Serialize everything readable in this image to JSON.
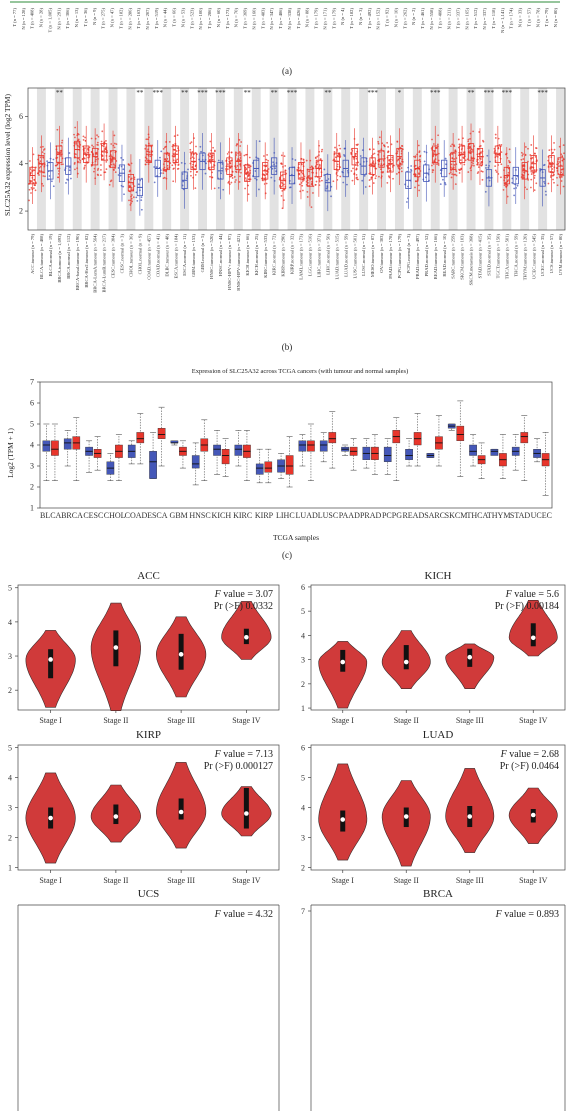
{
  "panels": {
    "a": {
      "label": "(a)",
      "tick_labels": [
        "T (n = 77)",
        "N (n = 128)",
        "T (n = 408)",
        "N (n = 28)",
        "T (n = 1,085)",
        "N (n = 291)",
        "T (n = 306)",
        "N (n = 13)",
        "T (n = 36)",
        "N (n = 9)",
        "T (n = 275)",
        "N (n = 47)",
        "T (n = 182)",
        "N (n = 286)",
        "T (n = 163)",
        "N (n = 207)",
        "T (n = 519)",
        "N (n = 44)",
        "T (n = 66)",
        "N (n = 53)",
        "T (n = 523)",
        "N (n = 100)",
        "T (n = 286)",
        "N (n = 60)",
        "T (n = 173)",
        "N (n = 70)",
        "T (n = 369)",
        "N (n = 160)",
        "T (n = 483)",
        "N (n = 347)",
        "T (n = 486)",
        "N (n = 338)",
        "T (n = 426)",
        "N (n = 88)",
        "T (n = 179)",
        "N (n = 171)",
        "T (n = 179)",
        "N (n = 4)",
        "T (n = 182)",
        "N (n = 3)",
        "T (n = 492)",
        "N (n = 152)",
        "T (n = 92)",
        "N (n = 10)",
        "T (n = 262)",
        "N (n = 2)",
        "T (n = 461)",
        "N (n = 558)",
        "T (n = 408)",
        "N (n = 211)",
        "T (n = 337)",
        "N (n = 165)",
        "T (n = 512)",
        "N (n = 337)",
        "T (n = 118)",
        "N (n = 1,141)",
        "T (n = 174)",
        "N (n = 33)",
        "T (n = 57)",
        "N (n = 78)",
        "T (n = 79)",
        "N (n = 80)"
      ]
    },
    "b": {
      "label": "(b)",
      "ylabel": "SLC25A32 expression level (log2 TPM)",
      "y_ticks": [
        "2",
        "4",
        "6"
      ],
      "categories": [
        "ACC.tumour (n = 79)",
        "BLCA.tumour (n = 408)",
        "BLCA.normal (n = 19)",
        "BRCA.tumour (n = 1,093)",
        "BRCA.normal (n = 112)",
        "BRCA-basal.tumour (n = 190)",
        "BRCA-Her2.tumour (n = 82)",
        "BRCA-LumA.tumour (n = 564)",
        "BRCA-LumB.tumour (n = 217)",
        "CESC.tumour (n = 304)",
        "CESC.normal (n = 3)",
        "CHOL.tumour (n = 36)",
        "CHOL.normal (n = 9)",
        "COAD.tumour (n = 457)",
        "COAD.normal (n = 41)",
        "DLBC.tumour (n = 48)",
        "ESCA.tumour (n = 184)",
        "ESCA.normal (n = 11)",
        "GBM.tumour (n = 153)",
        "GBM.normal (n = 5)",
        "HNSC.tumour (n = 520)",
        "HNSC.normal (n = 44)",
        "HNSC-HPV+.tumour (n = 97)",
        "HNSC-HPV-.tumour (n = 421)",
        "KICH.tumour (n = 66)",
        "KICH.normal (n = 25)",
        "KIRC.tumour (n = 533)",
        "KIRC.normal (n = 72)",
        "KIRP.tumour (n = 290)",
        "KIRP.normal (n = 32)",
        "LAML.tumour (n = 173)",
        "LGG.tumour (n = 516)",
        "LIHC.tumour (n = 371)",
        "LIHC.normal (n = 50)",
        "LUAD.tumour (n = 515)",
        "LUAD.normal (n = 59)",
        "LUSC.tumour (n = 501)",
        "LUSC.normal (n = 51)",
        "MESO.tumour (n = 87)",
        "OV.tumour (n = 303)",
        "PAAD.tumour (n = 178)",
        "PCPG.tumour (n = 179)",
        "PCPG.normal (n = 3)",
        "PRAD.tumour (n = 497)",
        "PRAD.normal (n = 52)",
        "READ.tumour (n = 166)",
        "READ.normal (n = 10)",
        "SARC.tumour (n = 259)",
        "SKCM.tumour (n = 103)",
        "SKCM.metastasis (n = 368)",
        "STAD.tumour (n = 415)",
        "STAD.normal (n = 35)",
        "TGCT.tumour (n = 150)",
        "THCA.tumour (n = 501)",
        "THCA.normal (n = 59)",
        "THYM.tumour (n = 120)",
        "UCEC.tumour (n = 545)",
        "UCEC.normal (n = 35)",
        "UCS.tumour (n = 57)",
        "UVM.tumour (n = 80)"
      ],
      "sig_labels": [
        "**",
        "**",
        "***",
        "**",
        "***",
        "***",
        "**",
        "**",
        "***",
        "**",
        "***",
        "*",
        "***",
        "**",
        "***",
        "***",
        "***"
      ]
    },
    "c": {
      "label": "(c)",
      "title": "Expression of SLC25A32 across TCGA cancers (with tumour and normal samples)",
      "ylabel": "Log2 (TPM + 1)",
      "xlabel": "TCGA samples",
      "y_ticks": [
        "1",
        "2",
        "3",
        "4",
        "5",
        "6",
        "7"
      ],
      "categories": [
        "BLCA",
        "BRCA",
        "CESC",
        "CHOL",
        "COAD",
        "ESCA",
        "GBM",
        "HNSC",
        "KICH",
        "KIRC",
        "KIRP",
        "LIHC",
        "LUAD",
        "LUSC",
        "PAAD",
        "PRAD",
        "PCPG",
        "READ",
        "SARC",
        "SKCM",
        "THCA",
        "THYM",
        "STAD",
        "UCEC"
      ]
    },
    "d": {
      "stat_f_prefix": "F",
      "stat_f_suffix": " value",
      "stat_pr": "Pr (>F)",
      "stage_labels": [
        "Stage I",
        "Stage II",
        "Stage III",
        "Stage IV"
      ],
      "plots": [
        {
          "title": "ACC",
          "f_value": "3.07",
          "pr_value": "0.0332",
          "y_ticks": [
            "2",
            "3",
            "4",
            "5"
          ]
        },
        {
          "title": "KICH",
          "f_value": "5.6",
          "pr_value": "0.00184",
          "y_ticks": [
            "1",
            "2",
            "3",
            "4",
            "5",
            "6"
          ]
        },
        {
          "title": "KIRP",
          "f_value": "7.13",
          "pr_value": "0.000127",
          "y_ticks": [
            "1",
            "2",
            "3",
            "4",
            "5"
          ]
        },
        {
          "title": "LUAD",
          "f_value": "2.68",
          "pr_value": "0.0464",
          "y_ticks": [
            "2",
            "3",
            "4",
            "5",
            "6"
          ]
        },
        {
          "title": "UCS",
          "f_value": "4.32",
          "pr_value": "",
          "y_ticks": []
        },
        {
          "title": "BRCA",
          "f_value": "0.893",
          "pr_value": "",
          "y_ticks": [
            "7"
          ]
        }
      ]
    }
  },
  "colors": {
    "tumour": "#e8352b",
    "normal": "#4457b8",
    "violin": "#d03a3a",
    "shade": "#d8d8d8",
    "green": "#2e8b3a"
  },
  "chart_data": [
    {
      "type": "box",
      "id": "panel-b",
      "ylabel": "SLC25A32 expression level (log2 TPM)",
      "yticks": [
        2,
        4,
        6
      ],
      "categories_ref": "panels.b.categories",
      "medians": [
        3.5,
        4.0,
        3.7,
        4.4,
        3.9,
        4.6,
        4.4,
        4.3,
        4.5,
        4.2,
        3.6,
        3.2,
        3.0,
        4.4,
        3.8,
        4.1,
        4.4,
        3.3,
        4.1,
        4.1,
        4.1,
        3.7,
        3.9,
        4.1,
        3.6,
        3.8,
        3.7,
        3.9,
        3.3,
        3.5,
        3.7,
        3.4,
        3.8,
        3.2,
        4.1,
        3.8,
        4.3,
        3.9,
        3.9,
        4.2,
        4.0,
        4.3,
        3.3,
        3.8,
        3.6,
        4.4,
        3.8,
        4.1,
        4.4,
        4.5,
        4.3,
        3.4,
        4.4,
        3.5,
        3.5,
        3.7,
        4.0,
        3.4,
        4.0,
        3.9
      ]
    },
    {
      "type": "box",
      "id": "panel-c",
      "title": "Expression of SLC25A32 across TCGA cancers (with tumour and normal samples)",
      "ylabel": "Log2 (TPM + 1)",
      "xlabel": "TCGA samples",
      "ylim": [
        1,
        7
      ],
      "categories_ref": "panels.c.categories",
      "series": [
        {
          "color_key": "normal",
          "q1": [
            3.7,
            3.8,
            3.5,
            2.6,
            3.4,
            2.4,
            4.1,
            2.9,
            3.5,
            3.5,
            2.6,
            2.7,
            3.7,
            3.7,
            3.7,
            3.3,
            3.2,
            3.3,
            3.4,
            4.8,
            3.5,
            3.5,
            3.5,
            3.4
          ],
          "median": [
            4.0,
            4.1,
            3.7,
            2.9,
            3.7,
            3.2,
            4.1,
            3.1,
            3.8,
            3.8,
            2.9,
            3.0,
            4.0,
            4.0,
            3.8,
            3.6,
            3.5,
            3.5,
            3.5,
            4.9,
            3.7,
            3.7,
            3.7,
            3.6
          ],
          "q3": [
            4.2,
            4.3,
            3.9,
            3.2,
            4.0,
            3.7,
            4.2,
            3.5,
            4.0,
            4.0,
            3.1,
            3.3,
            4.2,
            4.2,
            3.9,
            3.9,
            3.9,
            3.8,
            3.6,
            5.0,
            4.0,
            3.8,
            3.9,
            3.8
          ],
          "lo": [
            2.3,
            3.0,
            2.7,
            2.3,
            3.1,
            2.4,
            4.0,
            2.1,
            2.6,
            3.0,
            2.2,
            2.4,
            3.0,
            3.2,
            3.5,
            2.9,
            2.6,
            3.0,
            3.4,
            4.7,
            3.0,
            3.7,
            2.8,
            3.2
          ],
          "hi": [
            5.0,
            4.7,
            4.2,
            3.6,
            4.2,
            4.6,
            4.2,
            4.1,
            4.7,
            4.7,
            3.8,
            3.6,
            4.5,
            4.6,
            4.0,
            4.3,
            4.3,
            4.3,
            3.6,
            5.0,
            4.5,
            3.8,
            4.5,
            4.3
          ]
        },
        {
          "color_key": "tumour",
          "q1": [
            3.5,
            3.8,
            3.4,
            3.4,
            4.1,
            4.3,
            3.5,
            3.7,
            3.1,
            3.4,
            2.7,
            2.6,
            3.7,
            4.1,
            3.5,
            3.3,
            4.1,
            4.0,
            3.8,
            4.2,
            3.1,
            3.0,
            4.1,
            3.0
          ],
          "median": [
            3.8,
            4.1,
            3.6,
            3.7,
            4.3,
            4.5,
            3.7,
            4.0,
            3.5,
            3.7,
            2.9,
            3.0,
            4.0,
            4.3,
            3.7,
            3.6,
            4.4,
            4.3,
            4.1,
            4.5,
            3.3,
            3.3,
            4.4,
            3.3
          ],
          "q3": [
            4.2,
            4.4,
            3.8,
            4.0,
            4.6,
            4.8,
            3.9,
            4.3,
            3.8,
            4.0,
            3.2,
            3.5,
            4.2,
            4.6,
            3.9,
            3.9,
            4.7,
            4.6,
            4.4,
            4.9,
            3.5,
            3.6,
            4.6,
            3.6
          ],
          "lo": [
            2.3,
            2.3,
            2.8,
            2.3,
            3.1,
            3.0,
            2.9,
            2.3,
            2.5,
            2.3,
            2.2,
            2.0,
            2.3,
            2.9,
            2.8,
            2.6,
            2.3,
            3.0,
            3.0,
            2.5,
            2.4,
            2.4,
            2.3,
            1.6
          ],
          "hi": [
            5.0,
            5.3,
            4.4,
            4.5,
            5.5,
            5.8,
            4.2,
            5.2,
            4.3,
            4.7,
            3.8,
            4.4,
            5.0,
            5.6,
            4.3,
            4.5,
            5.3,
            5.5,
            5.4,
            6.1,
            4.1,
            4.5,
            5.4,
            4.6
          ]
        }
      ]
    },
    {
      "type": "violin",
      "id": "panel-d",
      "categories_ref": "panels.d.stage_labels",
      "plots": [
        {
          "title": "ACC",
          "ylim": [
            1.5,
            5.0
          ],
          "min": [
            1.5,
            1.4,
            1.8,
            2.9
          ],
          "max": [
            3.75,
            4.55,
            4.15,
            4.6
          ],
          "q1": [
            2.35,
            2.7,
            2.6,
            3.35
          ],
          "median": [
            2.9,
            3.25,
            3.05,
            3.55
          ],
          "q3": [
            3.2,
            3.75,
            3.65,
            3.8
          ]
        },
        {
          "title": "KICH",
          "ylim": [
            1.0,
            6.0
          ],
          "min": [
            1.0,
            1.8,
            1.8,
            3.15
          ],
          "max": [
            3.75,
            4.2,
            3.65,
            5.45
          ],
          "q1": [
            2.5,
            2.6,
            2.7,
            3.55
          ],
          "median": [
            2.9,
            2.9,
            3.1,
            3.9
          ],
          "q3": [
            3.4,
            3.6,
            3.45,
            4.5
          ]
        },
        {
          "title": "KIRP",
          "ylim": [
            1.0,
            5.0
          ],
          "min": [
            1.15,
            1.85,
            1.65,
            2.05
          ],
          "max": [
            4.15,
            3.75,
            4.5,
            3.7
          ],
          "q1": [
            2.3,
            2.45,
            2.6,
            2.3
          ],
          "median": [
            2.65,
            2.7,
            2.85,
            2.8
          ],
          "q3": [
            3.0,
            3.1,
            3.3,
            3.65
          ]
        },
        {
          "title": "LUAD",
          "ylim": [
            2.0,
            6.0
          ],
          "min": [
            2.25,
            2.05,
            2.5,
            2.8
          ],
          "max": [
            5.45,
            4.9,
            5.3,
            4.65
          ],
          "q1": [
            3.2,
            3.35,
            3.35,
            3.5
          ],
          "median": [
            3.6,
            3.7,
            3.7,
            3.75
          ],
          "q3": [
            3.9,
            4.0,
            4.05,
            3.95
          ]
        }
      ]
    }
  ]
}
